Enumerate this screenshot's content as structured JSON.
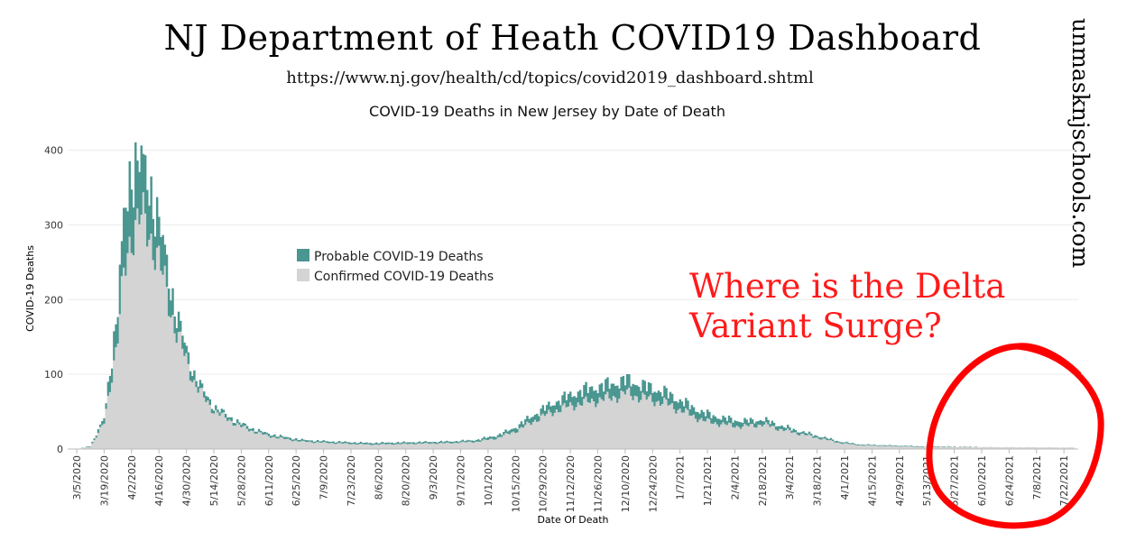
{
  "header": {
    "title": "NJ Department of Heath COVID19 Dashboard",
    "url": "https://www.nj.gov/health/cd/topics/covid2019_dashboard.shtml"
  },
  "watermark": "unmasknjschools.com",
  "annotation": {
    "line1": "Where is the Delta",
    "line2": "Variant Surge?",
    "color": "#ff1a1a"
  },
  "chart_data": {
    "type": "bar",
    "stacked": true,
    "title": "COVID-19 Deaths in New Jersey by Date of Death",
    "xlabel": "Date Of Death",
    "ylabel": "COVID-19 Deaths",
    "ylim": [
      0,
      420
    ],
    "yticks": [
      0,
      100,
      200,
      300,
      400
    ],
    "x_start": "3/5/2020",
    "x_end": "7/27/2021",
    "xtick_labels": [
      "3/5/2020",
      "3/19/2020",
      "4/2/2020",
      "4/16/2020",
      "4/30/2020",
      "5/14/2020",
      "5/28/2020",
      "6/11/2020",
      "6/25/2020",
      "7/9/2020",
      "7/23/2020",
      "8/6/2020",
      "8/20/2020",
      "9/3/2020",
      "9/17/2020",
      "10/1/2020",
      "10/15/2020",
      "10/29/2020",
      "11/12/2020",
      "11/26/2020",
      "12/10/2020",
      "12/24/2020",
      "1/7/2021",
      "1/21/2021",
      "2/4/2021",
      "2/18/2021",
      "3/4/2021",
      "3/18/2021",
      "4/1/2021",
      "4/15/2021",
      "4/29/2021",
      "5/13/2021",
      "5/27/2021",
      "6/10/2021",
      "6/24/2021",
      "7/8/2021",
      "7/22/2021"
    ],
    "legend": {
      "placement": "top-left",
      "entries": [
        "Probable COVID-19 Deaths",
        "Confirmed COVID-19 Deaths"
      ]
    },
    "grid": {
      "horizontal": true,
      "vertical": false
    },
    "series": [
      {
        "name": "Confirmed COVID-19 Deaths",
        "color": "#d4d4d4",
        "values": [
          [
            0,
            0
          ],
          [
            7,
            3
          ],
          [
            14,
            35
          ],
          [
            21,
            150
          ],
          [
            24,
            230
          ],
          [
            28,
            290
          ],
          [
            32,
            310
          ],
          [
            35,
            300
          ],
          [
            40,
            270
          ],
          [
            45,
            220
          ],
          [
            50,
            165
          ],
          [
            55,
            125
          ],
          [
            60,
            90
          ],
          [
            65,
            68
          ],
          [
            70,
            52
          ],
          [
            77,
            40
          ],
          [
            84,
            30
          ],
          [
            90,
            24
          ],
          [
            97,
            18
          ],
          [
            105,
            14
          ],
          [
            115,
            10
          ],
          [
            130,
            8
          ],
          [
            150,
            6
          ],
          [
            170,
            7
          ],
          [
            190,
            8
          ],
          [
            205,
            10
          ],
          [
            215,
            15
          ],
          [
            225,
            25
          ],
          [
            235,
            40
          ],
          [
            245,
            52
          ],
          [
            255,
            60
          ],
          [
            265,
            65
          ],
          [
            275,
            70
          ],
          [
            280,
            75
          ],
          [
            290,
            68
          ],
          [
            300,
            62
          ],
          [
            310,
            50
          ],
          [
            320,
            38
          ],
          [
            330,
            33
          ],
          [
            340,
            30
          ],
          [
            350,
            33
          ],
          [
            355,
            30
          ],
          [
            360,
            26
          ],
          [
            370,
            20
          ],
          [
            380,
            14
          ],
          [
            390,
            8
          ],
          [
            400,
            5
          ],
          [
            415,
            4
          ],
          [
            430,
            3
          ],
          [
            440,
            3
          ],
          [
            504,
            2
          ]
        ]
      },
      {
        "name": "Probable COVID-19 Deaths",
        "color": "#4a9690",
        "values": [
          [
            0,
            0
          ],
          [
            7,
            1
          ],
          [
            14,
            6
          ],
          [
            21,
            40
          ],
          [
            24,
            75
          ],
          [
            28,
            85
          ],
          [
            32,
            75
          ],
          [
            35,
            70
          ],
          [
            40,
            55
          ],
          [
            45,
            40
          ],
          [
            50,
            25
          ],
          [
            55,
            15
          ],
          [
            60,
            10
          ],
          [
            70,
            5
          ],
          [
            90,
            3
          ],
          [
            120,
            2
          ],
          [
            200,
            2
          ],
          [
            220,
            4
          ],
          [
            240,
            10
          ],
          [
            260,
            17
          ],
          [
            275,
            18
          ],
          [
            290,
            16
          ],
          [
            310,
            12
          ],
          [
            330,
            8
          ],
          [
            350,
            6
          ],
          [
            370,
            3
          ],
          [
            400,
            1
          ],
          [
            504,
            0
          ]
        ]
      }
    ]
  }
}
